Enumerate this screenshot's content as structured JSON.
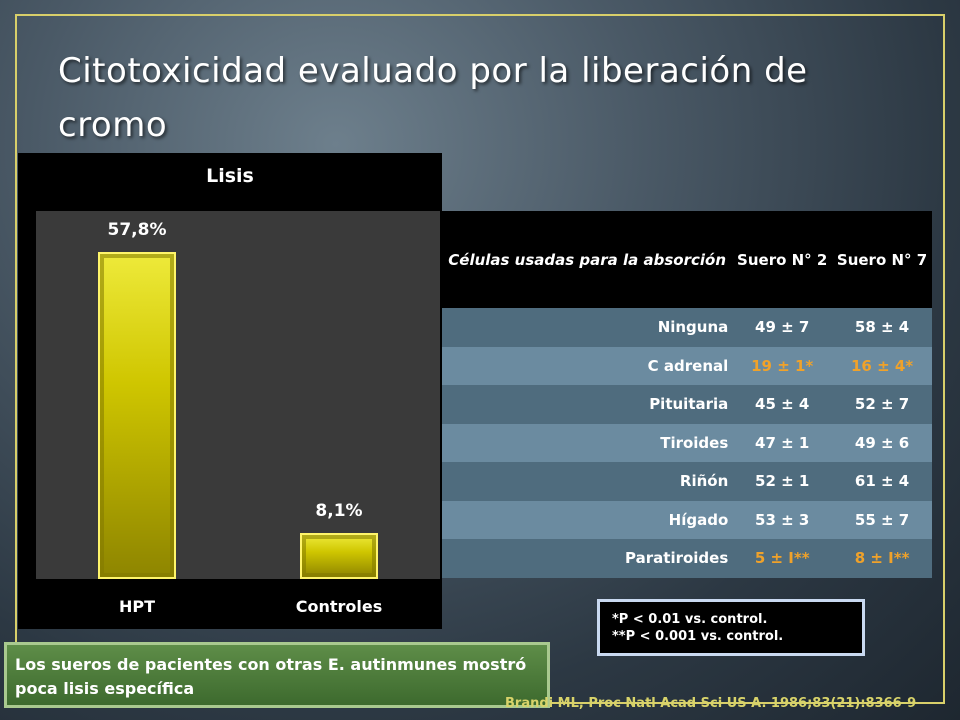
{
  "slide": {
    "title": "Citotoxicidad evaluado por la liberación de cromo",
    "conclusion": "Los sueros de pacientes con otras E. autinmunes mostró poca lisis  específica",
    "citation": "Brandi ML, Proc Natl Acad Sci  US A. 1986;83(21):8366-9",
    "footnotes": [
      "*P < 0.01 vs. control.",
      "**P < 0.001 vs. control."
    ],
    "colors": {
      "bar": "#d4cc00",
      "frame": "#d8cf6a",
      "significant": "#f0a22a"
    }
  },
  "chart_data": {
    "type": "bar",
    "title": "Lisis",
    "categories": [
      "HPT",
      "Controles"
    ],
    "values": [
      57.8,
      8.1
    ],
    "data_labels": [
      "57,8%",
      "8,1%"
    ],
    "xlabel": "",
    "ylabel": "",
    "ylim": [
      0,
      65
    ],
    "grid": false
  },
  "table": {
    "headers": [
      "Células usadas para la absorción",
      "Suero N° 2",
      "Suero N° 7"
    ],
    "rows": [
      [
        "Ninguna",
        "49 ± 7",
        "58 ± 4"
      ],
      [
        "C adrenal",
        "19 ± 1*",
        "16 ± 4*"
      ],
      [
        "Pituitaria",
        "45 ± 4",
        "52 ± 7"
      ],
      [
        "Tiroides",
        "47 ± 1",
        "49 ± 6"
      ],
      [
        "Riñón",
        "52 ± 1",
        "61 ± 4"
      ],
      [
        "Hígado",
        "53 ± 3",
        "55 ± 7"
      ],
      [
        "Paratiroides",
        "5 ± I**",
        "8 ± I**"
      ]
    ],
    "significant_rows": [
      1,
      6
    ]
  }
}
